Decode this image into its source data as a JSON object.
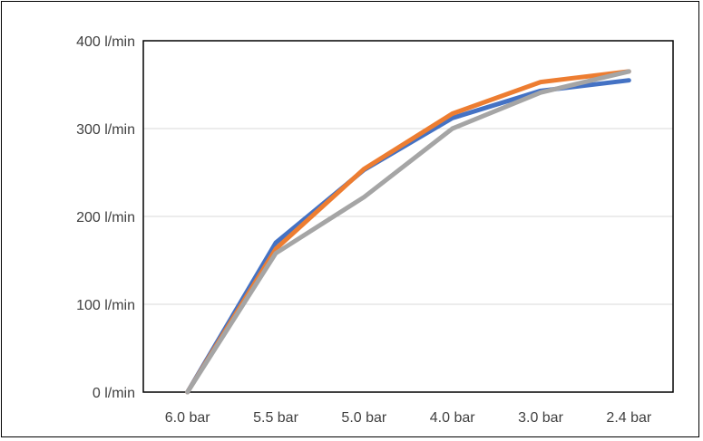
{
  "chart_data": {
    "type": "line",
    "categories": [
      "6.0 bar",
      "5.5 bar",
      "5.0 bar",
      "4.0 bar",
      "3.0 bar",
      "2.4 bar"
    ],
    "y_ticks": [
      "0 l/min",
      "100 l/min",
      "200 l/min",
      "300 l/min",
      "400 l/min"
    ],
    "ylim": [
      0,
      400
    ],
    "grid": true,
    "series": [
      {
        "color": "#4472c4",
        "values": [
          0,
          170,
          253,
          312,
          343,
          355
        ]
      },
      {
        "color": "#ed7d31",
        "values": [
          0,
          163,
          254,
          317,
          353,
          365
        ]
      },
      {
        "color": "#a5a5a5",
        "values": [
          0,
          158,
          222,
          300,
          341,
          365
        ]
      }
    ]
  }
}
